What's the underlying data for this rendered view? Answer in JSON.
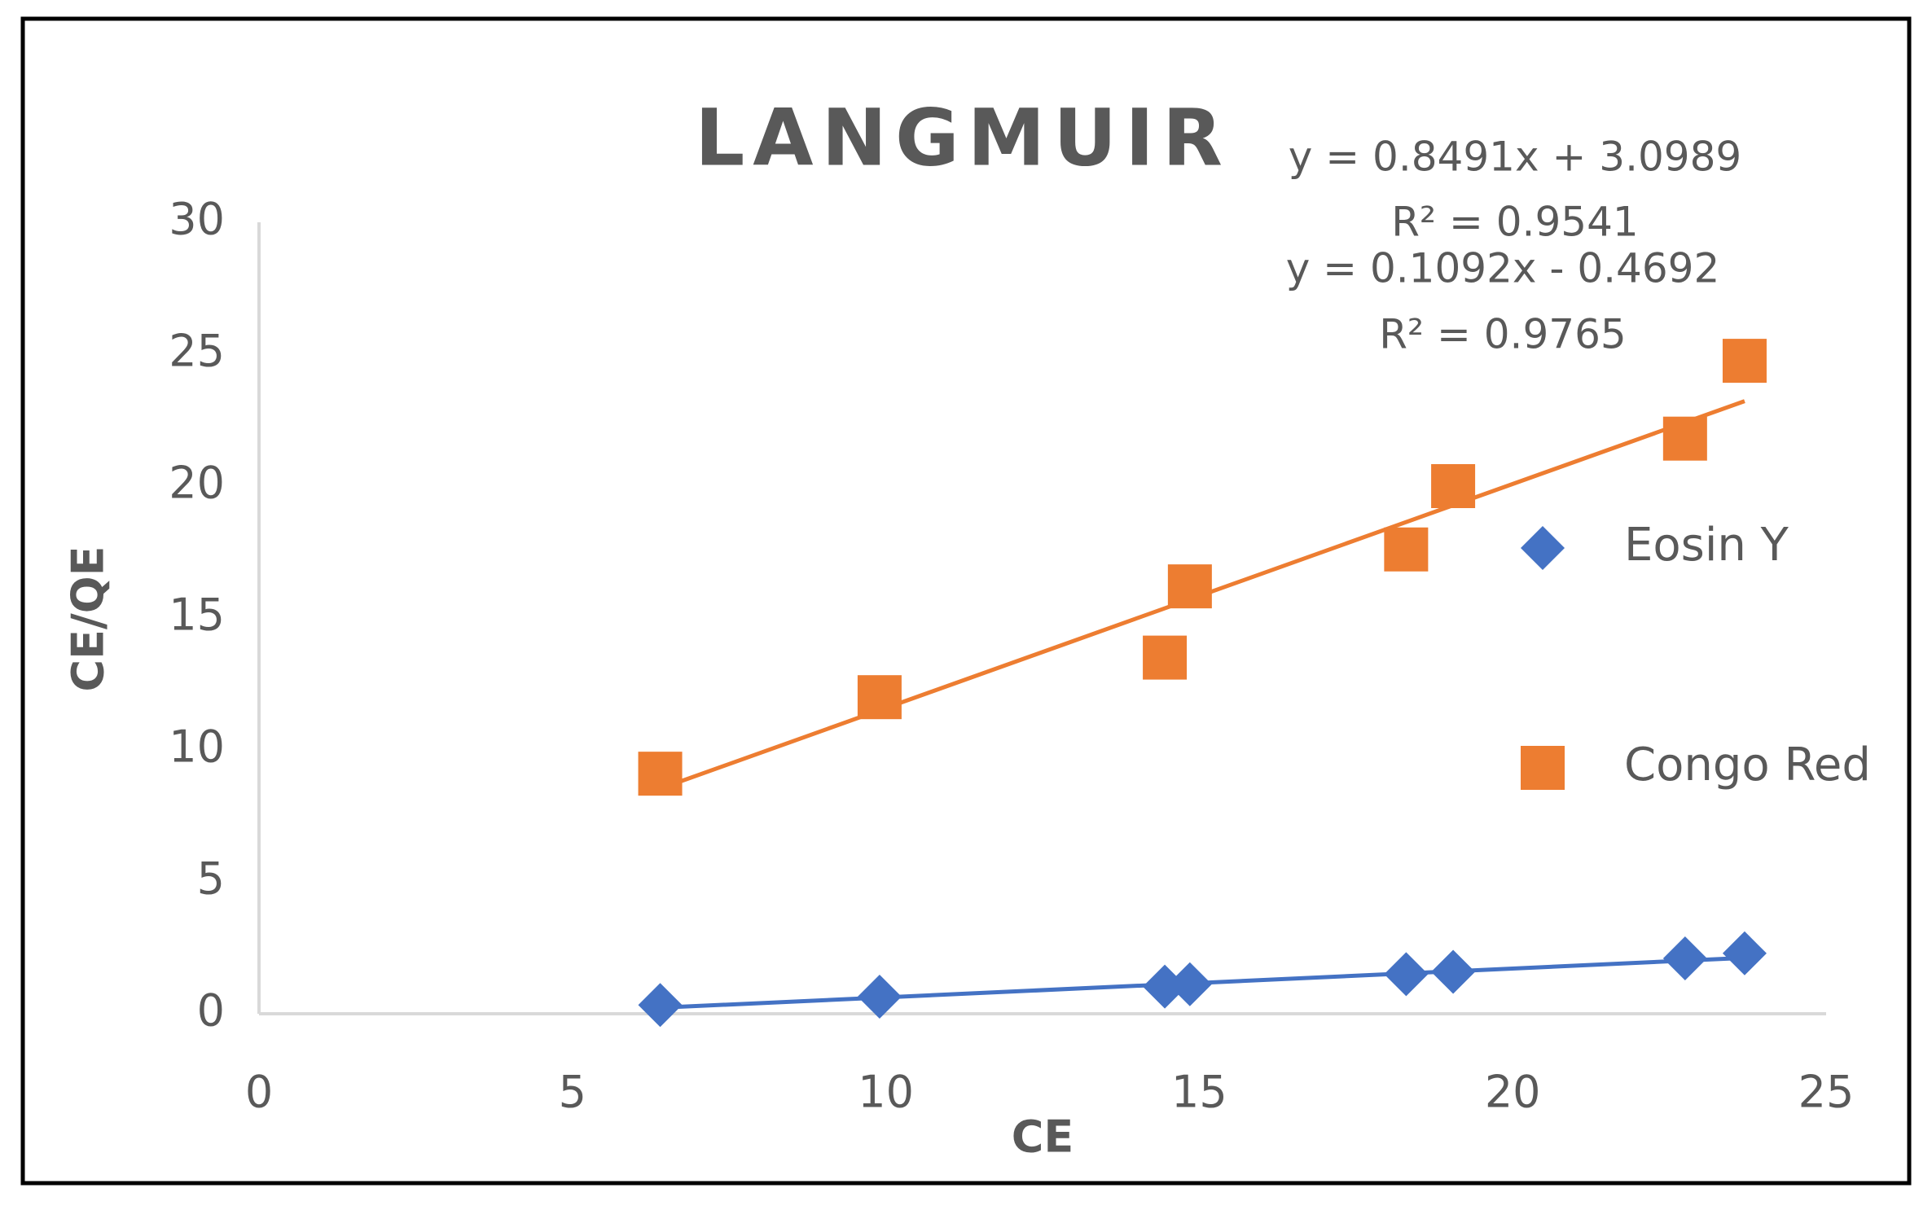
{
  "chart_data": {
    "type": "scatter",
    "title": "LANGMUIR",
    "x_label": "CE",
    "y_label": "CE/QE",
    "xlim": [
      0,
      25
    ],
    "xticks": [
      0,
      5,
      10,
      15,
      20,
      25
    ],
    "ylim": [
      0,
      30
    ],
    "yticks": [
      0,
      5,
      10,
      15,
      20,
      25,
      30
    ],
    "grid": false,
    "legend": "right",
    "series": [
      {
        "name": "Eosin Y",
        "color": "#4472c4",
        "marker": "diamond",
        "x": [
          6.4,
          9.9,
          14.45,
          14.85,
          18.3,
          19.05,
          22.75,
          23.7
        ],
        "values": [
          0.33,
          0.65,
          1.03,
          1.12,
          1.5,
          1.59,
          2.1,
          2.29
        ],
        "trendline": {
          "slope": 0.1092,
          "intercept": -0.4692,
          "equation": "y = 0.1092x - 0.4692",
          "r2": "R² = 0.9765"
        }
      },
      {
        "name": "Congo Red",
        "color": "#ed7d31",
        "marker": "square",
        "x": [
          6.4,
          9.9,
          14.45,
          14.85,
          18.3,
          19.05,
          22.75,
          23.7
        ],
        "values": [
          9.1,
          12.0,
          13.5,
          16.2,
          17.6,
          20.0,
          21.8,
          24.75
        ],
        "trendline": {
          "slope": 0.8491,
          "intercept": 3.0989,
          "equation": "y = 0.8491x + 3.0989",
          "r2": "R² = 0.9541"
        }
      }
    ]
  }
}
